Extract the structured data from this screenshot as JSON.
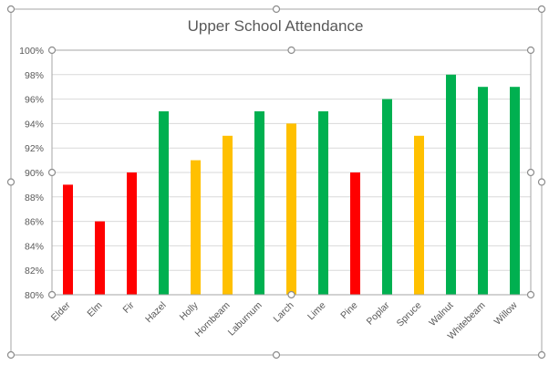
{
  "chart_data": {
    "type": "bar",
    "title": "Upper School Attendance",
    "xlabel": "",
    "ylabel": "",
    "ylim": [
      80,
      100
    ],
    "ytick_step": 2,
    "ytick_labels": [
      "80%",
      "82%",
      "84%",
      "86%",
      "88%",
      "90%",
      "92%",
      "94%",
      "96%",
      "98%",
      "100%"
    ],
    "categories": [
      "Elder",
      "Elm",
      "Fir",
      "Hazel",
      "Holly",
      "Hornbeam",
      "Laburnum",
      "Larch",
      "Lime",
      "Pine",
      "Poplar",
      "Spruce",
      "Walnut",
      "Whitebeam",
      "Willow"
    ],
    "values": [
      89,
      86,
      90,
      95,
      91,
      93,
      95,
      94,
      95,
      90,
      96,
      93,
      98,
      97,
      97
    ],
    "bar_colors": [
      "#ff0000",
      "#ff0000",
      "#ff0000",
      "#00b050",
      "#ffc000",
      "#ffc000",
      "#00b050",
      "#ffc000",
      "#00b050",
      "#ff0000",
      "#00b050",
      "#ffc000",
      "#00b050",
      "#00b050",
      "#00b050"
    ],
    "grid": true,
    "legend": "none"
  }
}
